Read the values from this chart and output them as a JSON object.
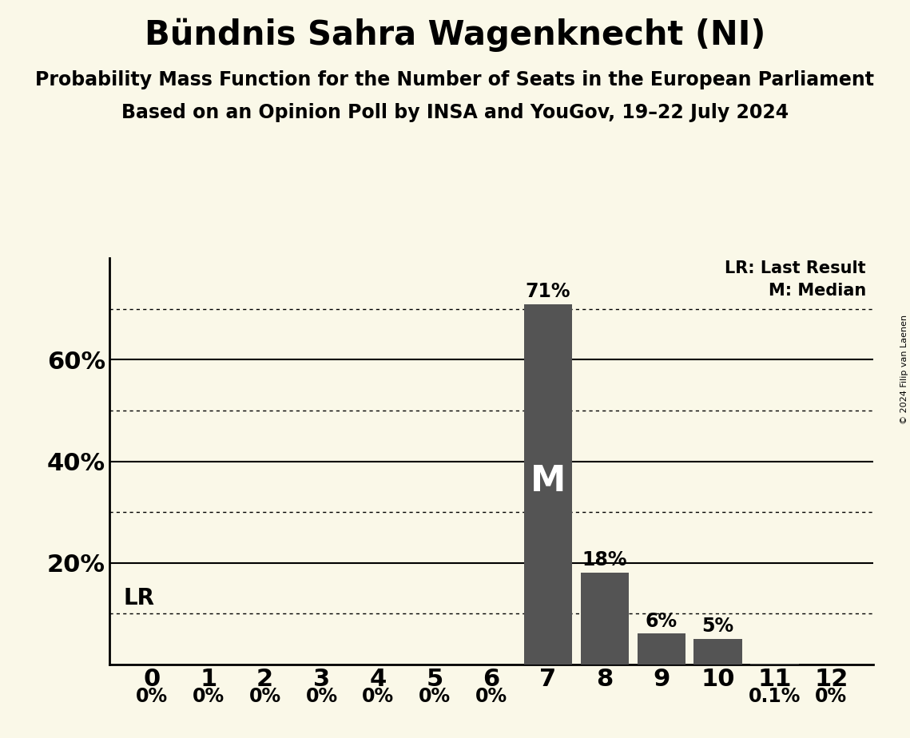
{
  "title": "Bündnis Sahra Wagenknecht (NI)",
  "subtitle1": "Probability Mass Function for the Number of Seats in the European Parliament",
  "subtitle2": "Based on an Opinion Poll by INSA and YouGov, 19–22 July 2024",
  "copyright": "© 2024 Filip van Laenen",
  "seats": [
    0,
    1,
    2,
    3,
    4,
    5,
    6,
    7,
    8,
    9,
    10,
    11,
    12
  ],
  "probabilities": [
    0.0,
    0.0,
    0.0,
    0.0,
    0.0,
    0.0,
    0.0,
    0.71,
    0.18,
    0.06,
    0.05,
    0.001,
    0.0
  ],
  "bar_color": "#545454",
  "background_color": "#faf8e8",
  "lr_value": 0.1,
  "median_seat": 7,
  "solid_ticks": [
    0.2,
    0.4,
    0.6
  ],
  "dotted_ticks": [
    0.1,
    0.3,
    0.5,
    0.7
  ],
  "ylim": [
    0,
    0.8
  ],
  "bar_labels": [
    "0%",
    "0%",
    "0%",
    "0%",
    "0%",
    "0%",
    "0%",
    "71%",
    "18%",
    "6%",
    "5%",
    "0.1%",
    "0%"
  ],
  "legend_lr": "LR: Last Result",
  "legend_m": "M: Median",
  "title_fontsize": 30,
  "subtitle1_fontsize": 17,
  "subtitle2_fontsize": 17,
  "axis_label_fontsize": 22,
  "ytick_fontsize": 22,
  "xtick_fontsize": 22,
  "bar_label_fontsize": 17,
  "median_fontsize": 32,
  "legend_fontsize": 15,
  "lr_fontsize": 20,
  "copyright_fontsize": 8
}
